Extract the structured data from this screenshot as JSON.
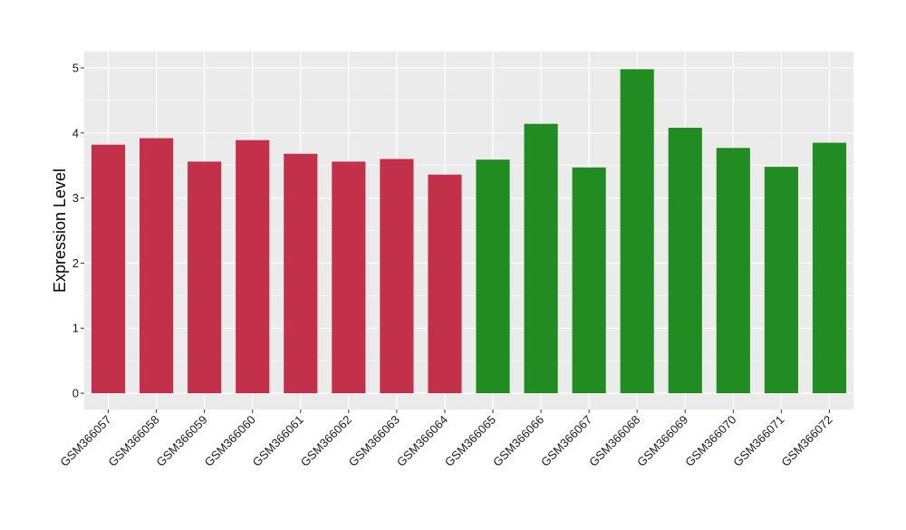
{
  "chart_data": {
    "type": "bar",
    "title": "",
    "xlabel": "",
    "ylabel": "Expression Level",
    "ylim": [
      -0.25,
      5.25
    ],
    "yticks": [
      0,
      1,
      2,
      3,
      4,
      5
    ],
    "grid": true,
    "legend": "none",
    "categories": [
      "GSM366057",
      "GSM366058",
      "GSM366059",
      "GSM366060",
      "GSM366061",
      "GSM366062",
      "GSM366063",
      "GSM366064",
      "GSM366065",
      "GSM366066",
      "GSM366067",
      "GSM366068",
      "GSM366069",
      "GSM366070",
      "GSM366071",
      "GSM366072"
    ],
    "values": [
      3.82,
      3.92,
      3.56,
      3.89,
      3.68,
      3.56,
      3.6,
      3.36,
      3.59,
      4.14,
      3.47,
      4.98,
      4.08,
      3.77,
      3.48,
      3.85
    ],
    "groups": [
      "A",
      "A",
      "A",
      "A",
      "A",
      "A",
      "A",
      "A",
      "B",
      "B",
      "B",
      "B",
      "B",
      "B",
      "B",
      "B"
    ],
    "group_colors": {
      "A": "#C3304A",
      "B": "#228B22"
    }
  },
  "colors": {
    "panel_background": "#EBEBEB",
    "grid_major": "#FFFFFF",
    "axis_text": "#1A1A1A",
    "tick": "#333333"
  }
}
